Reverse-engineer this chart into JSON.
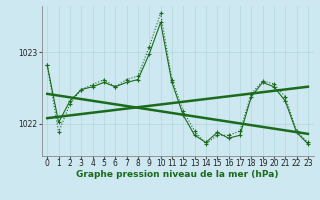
{
  "background_color": "#cde8f0",
  "line_color": "#1a6b1a",
  "x_values": [
    0,
    1,
    2,
    3,
    4,
    5,
    6,
    7,
    8,
    9,
    10,
    11,
    12,
    13,
    14,
    15,
    16,
    17,
    18,
    19,
    20,
    21,
    22,
    23
  ],
  "series_dotted": [
    1022.82,
    1021.88,
    1022.28,
    1022.48,
    1022.55,
    1022.62,
    1022.52,
    1022.62,
    1022.67,
    1023.08,
    1023.55,
    1022.62,
    1022.18,
    1021.9,
    1021.72,
    1021.84,
    1021.84,
    1021.9,
    1022.42,
    1022.6,
    1022.56,
    1022.38,
    1021.9,
    1021.74
  ],
  "series_solid": [
    1022.82,
    1022.02,
    1022.32,
    1022.48,
    1022.52,
    1022.58,
    1022.52,
    1022.58,
    1022.62,
    1022.98,
    1023.42,
    1022.58,
    1022.12,
    1021.84,
    1021.74,
    1021.88,
    1021.8,
    1021.84,
    1022.38,
    1022.58,
    1022.52,
    1022.32,
    1021.88,
    1021.72
  ],
  "trend1_x": [
    0,
    23
  ],
  "trend1_y": [
    1022.08,
    1022.52
  ],
  "trend2_x": [
    0,
    23
  ],
  "trend2_y": [
    1022.42,
    1021.86
  ],
  "ylim": [
    1021.55,
    1023.65
  ],
  "yticks": [
    1022,
    1023
  ],
  "xticks": [
    0,
    1,
    2,
    3,
    4,
    5,
    6,
    7,
    8,
    9,
    10,
    11,
    12,
    13,
    14,
    15,
    16,
    17,
    18,
    19,
    20,
    21,
    22,
    23
  ],
  "grid_color": "#b0d8d8",
  "xlabel": "Graphe pression niveau de la mer (hPa)",
  "xlabel_fontsize": 6.5,
  "tick_fontsize": 5.5
}
